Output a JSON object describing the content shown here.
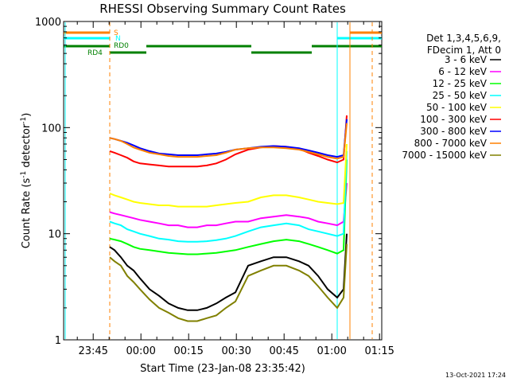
{
  "chart_data": {
    "type": "line",
    "title": "RHESSI Observing Summary Count Rates",
    "xlabel": "Start Time (23-Jan-08 23:35:42)",
    "ylabel_main": "Count Rate (s",
    "ylabel_sup1": "-1",
    "ylabel_mid": " detector",
    "ylabel_sup2": "-1",
    "ylabel_end": ")",
    "timestamp": "13-Oct-2021 17:24",
    "y_scale": "log",
    "ylim": [
      1,
      1000
    ],
    "xlim_minutes": [
      0,
      100
    ],
    "x_ticks": [
      {
        "m": 9.3,
        "label": "23:45"
      },
      {
        "m": 24.3,
        "label": "00:00"
      },
      {
        "m": 39.3,
        "label": "00:15"
      },
      {
        "m": 54.3,
        "label": "00:30"
      },
      {
        "m": 69.3,
        "label": "00:45"
      },
      {
        "m": 84.3,
        "label": "01:00"
      },
      {
        "m": 99.3,
        "label": "01:15"
      }
    ],
    "y_ticks": [
      {
        "v": 1,
        "label": "1"
      },
      {
        "v": 10,
        "label": "10"
      },
      {
        "v": 100,
        "label": "100"
      },
      {
        "v": 1000,
        "label": "1000"
      }
    ],
    "legend_header": [
      "Det 1,3,4,5,6,9,",
      "FDecim 1, Att 0"
    ],
    "series": [
      {
        "name": "3 - 6 keV",
        "color": "#000000",
        "points": [
          [
            14.5,
            7.5
          ],
          [
            16,
            7
          ],
          [
            18,
            6
          ],
          [
            20,
            5
          ],
          [
            22,
            4.5
          ],
          [
            24,
            3.8
          ],
          [
            27,
            3
          ],
          [
            30,
            2.6
          ],
          [
            33,
            2.2
          ],
          [
            36,
            2
          ],
          [
            39,
            1.9
          ],
          [
            42,
            1.9
          ],
          [
            45,
            2
          ],
          [
            48,
            2.2
          ],
          [
            51,
            2.5
          ],
          [
            54,
            2.8
          ],
          [
            58,
            5
          ],
          [
            62,
            5.5
          ],
          [
            66,
            6
          ],
          [
            70,
            6
          ],
          [
            74,
            5.5
          ],
          [
            77,
            5
          ],
          [
            80,
            4
          ],
          [
            83,
            3
          ],
          [
            86,
            2.5
          ],
          [
            88,
            3
          ],
          [
            89,
            10
          ]
        ]
      },
      {
        "name": "6 - 12 keV",
        "color": "#ff00ff",
        "points": [
          [
            14.5,
            16
          ],
          [
            16,
            15.5
          ],
          [
            18,
            15
          ],
          [
            20,
            14.5
          ],
          [
            22,
            14
          ],
          [
            24,
            13.5
          ],
          [
            27,
            13
          ],
          [
            30,
            12.5
          ],
          [
            33,
            12
          ],
          [
            36,
            12
          ],
          [
            39,
            11.5
          ],
          [
            42,
            11.5
          ],
          [
            45,
            12
          ],
          [
            48,
            12
          ],
          [
            51,
            12.5
          ],
          [
            54,
            13
          ],
          [
            58,
            13
          ],
          [
            62,
            14
          ],
          [
            66,
            14.5
          ],
          [
            70,
            15
          ],
          [
            74,
            14.5
          ],
          [
            77,
            14
          ],
          [
            80,
            13
          ],
          [
            83,
            12.5
          ],
          [
            86,
            12
          ],
          [
            88,
            13
          ],
          [
            89,
            30
          ]
        ]
      },
      {
        "name": "12 - 25 keV",
        "color": "#00ff00",
        "points": [
          [
            14.5,
            9
          ],
          [
            16,
            8.8
          ],
          [
            18,
            8.5
          ],
          [
            20,
            8
          ],
          [
            22,
            7.5
          ],
          [
            24,
            7.2
          ],
          [
            27,
            7
          ],
          [
            30,
            6.8
          ],
          [
            33,
            6.6
          ],
          [
            36,
            6.5
          ],
          [
            39,
            6.4
          ],
          [
            42,
            6.4
          ],
          [
            45,
            6.5
          ],
          [
            48,
            6.6
          ],
          [
            51,
            6.8
          ],
          [
            54,
            7
          ],
          [
            58,
            7.5
          ],
          [
            62,
            8
          ],
          [
            66,
            8.5
          ],
          [
            70,
            8.8
          ],
          [
            74,
            8.5
          ],
          [
            77,
            8
          ],
          [
            80,
            7.5
          ],
          [
            83,
            7
          ],
          [
            86,
            6.5
          ],
          [
            88,
            7
          ],
          [
            89,
            50
          ]
        ]
      },
      {
        "name": "25 - 50 keV",
        "color": "#00ffff",
        "points": [
          [
            14.5,
            13
          ],
          [
            16,
            12.5
          ],
          [
            18,
            12
          ],
          [
            20,
            11
          ],
          [
            22,
            10.5
          ],
          [
            24,
            10
          ],
          [
            27,
            9.5
          ],
          [
            30,
            9
          ],
          [
            33,
            8.8
          ],
          [
            36,
            8.5
          ],
          [
            39,
            8.4
          ],
          [
            42,
            8.4
          ],
          [
            45,
            8.5
          ],
          [
            48,
            8.7
          ],
          [
            51,
            9
          ],
          [
            54,
            9.5
          ],
          [
            58,
            10.5
          ],
          [
            62,
            11.5
          ],
          [
            66,
            12
          ],
          [
            70,
            12.5
          ],
          [
            74,
            12
          ],
          [
            77,
            11
          ],
          [
            80,
            10.5
          ],
          [
            83,
            10
          ],
          [
            86,
            9.5
          ],
          [
            88,
            10
          ],
          [
            89,
            60
          ]
        ]
      },
      {
        "name": "50 - 100 keV",
        "color": "#ffff00",
        "points": [
          [
            14.5,
            24
          ],
          [
            16,
            23
          ],
          [
            18,
            22
          ],
          [
            20,
            21
          ],
          [
            22,
            20
          ],
          [
            24,
            19.5
          ],
          [
            27,
            19
          ],
          [
            30,
            18.5
          ],
          [
            33,
            18.5
          ],
          [
            36,
            18
          ],
          [
            39,
            18
          ],
          [
            42,
            18
          ],
          [
            45,
            18
          ],
          [
            48,
            18.5
          ],
          [
            51,
            19
          ],
          [
            54,
            19.5
          ],
          [
            58,
            20
          ],
          [
            62,
            22
          ],
          [
            66,
            23
          ],
          [
            70,
            23
          ],
          [
            74,
            22
          ],
          [
            77,
            21
          ],
          [
            80,
            20
          ],
          [
            83,
            19.5
          ],
          [
            86,
            19
          ],
          [
            88,
            19.5
          ],
          [
            89,
            70
          ]
        ]
      },
      {
        "name": "100 - 300 keV",
        "color": "#ff0000",
        "points": [
          [
            14.5,
            60
          ],
          [
            16,
            58
          ],
          [
            18,
            55
          ],
          [
            20,
            52
          ],
          [
            22,
            48
          ],
          [
            24,
            46
          ],
          [
            27,
            45
          ],
          [
            30,
            44
          ],
          [
            33,
            43
          ],
          [
            36,
            43
          ],
          [
            39,
            43
          ],
          [
            42,
            43
          ],
          [
            45,
            44
          ],
          [
            48,
            46
          ],
          [
            51,
            50
          ],
          [
            54,
            56
          ],
          [
            58,
            62
          ],
          [
            62,
            65
          ],
          [
            66,
            67
          ],
          [
            70,
            66
          ],
          [
            74,
            63
          ],
          [
            77,
            58
          ],
          [
            80,
            54
          ],
          [
            83,
            50
          ],
          [
            86,
            47
          ],
          [
            88,
            50
          ],
          [
            89,
            130
          ]
        ]
      },
      {
        "name": "300 - 800 keV",
        "color": "#0000ff",
        "points": [
          [
            14.5,
            80
          ],
          [
            16,
            78
          ],
          [
            18,
            75
          ],
          [
            20,
            72
          ],
          [
            22,
            68
          ],
          [
            24,
            64
          ],
          [
            27,
            60
          ],
          [
            30,
            57
          ],
          [
            33,
            56
          ],
          [
            36,
            55
          ],
          [
            39,
            55
          ],
          [
            42,
            55
          ],
          [
            45,
            56
          ],
          [
            48,
            57
          ],
          [
            51,
            59
          ],
          [
            54,
            62
          ],
          [
            58,
            64
          ],
          [
            62,
            66
          ],
          [
            66,
            67
          ],
          [
            70,
            66
          ],
          [
            74,
            64
          ],
          [
            77,
            61
          ],
          [
            80,
            58
          ],
          [
            83,
            55
          ],
          [
            86,
            53
          ],
          [
            88,
            55
          ],
          [
            89,
            120
          ]
        ]
      },
      {
        "name": "800 - 7000 keV",
        "color": "#ff8000",
        "points": [
          [
            14.5,
            80
          ],
          [
            16,
            78
          ],
          [
            18,
            75
          ],
          [
            20,
            70
          ],
          [
            22,
            65
          ],
          [
            24,
            62
          ],
          [
            27,
            58
          ],
          [
            30,
            56
          ],
          [
            33,
            54
          ],
          [
            36,
            53
          ],
          [
            39,
            53
          ],
          [
            42,
            53
          ],
          [
            45,
            54
          ],
          [
            48,
            55
          ],
          [
            51,
            58
          ],
          [
            54,
            62
          ],
          [
            58,
            64
          ],
          [
            62,
            65
          ],
          [
            66,
            65
          ],
          [
            70,
            64
          ],
          [
            74,
            62
          ],
          [
            77,
            59
          ],
          [
            80,
            56
          ],
          [
            83,
            53
          ],
          [
            86,
            51
          ],
          [
            88,
            53
          ],
          [
            89,
            110
          ]
        ]
      },
      {
        "name": "7000 - 15000 keV",
        "color": "#808000",
        "points": [
          [
            14.5,
            6
          ],
          [
            16,
            5.5
          ],
          [
            18,
            5
          ],
          [
            20,
            4
          ],
          [
            22,
            3.5
          ],
          [
            24,
            3
          ],
          [
            27,
            2.4
          ],
          [
            30,
            2
          ],
          [
            33,
            1.8
          ],
          [
            36,
            1.6
          ],
          [
            39,
            1.5
          ],
          [
            42,
            1.5
          ],
          [
            45,
            1.6
          ],
          [
            48,
            1.7
          ],
          [
            51,
            2
          ],
          [
            54,
            2.3
          ],
          [
            58,
            4
          ],
          [
            62,
            4.5
          ],
          [
            66,
            5
          ],
          [
            70,
            5
          ],
          [
            74,
            4.5
          ],
          [
            77,
            4
          ],
          [
            80,
            3.2
          ],
          [
            83,
            2.5
          ],
          [
            86,
            2
          ],
          [
            88,
            2.5
          ],
          [
            89,
            8
          ]
        ]
      }
    ],
    "state_bars": [
      {
        "label": "S",
        "color": "#ff8000",
        "segments": [
          [
            0,
            14.5
          ],
          [
            90,
            100
          ]
        ]
      },
      {
        "label": "N",
        "color": "#00ffff",
        "segments": [
          [
            0,
            14.5
          ],
          [
            86,
            100
          ]
        ]
      },
      {
        "label": "RD0",
        "color": "#008000",
        "segments": [
          [
            0,
            14.5
          ],
          [
            26,
            59
          ],
          [
            78,
            100
          ]
        ]
      },
      {
        "label": "RD4",
        "color": "#008000",
        "segments": [
          [
            14.5,
            26
          ],
          [
            59,
            78
          ]
        ]
      }
    ],
    "vertical_lines": [
      {
        "m": 0.5,
        "color": "#00ffff",
        "dash": false
      },
      {
        "m": 14.5,
        "color": "#ff8000",
        "dash": true
      },
      {
        "m": 86,
        "color": "#00ffff",
        "dash": false
      },
      {
        "m": 90,
        "color": "#ff8000",
        "dash": false
      },
      {
        "m": 97,
        "color": "#ff8000",
        "dash": true
      }
    ]
  }
}
